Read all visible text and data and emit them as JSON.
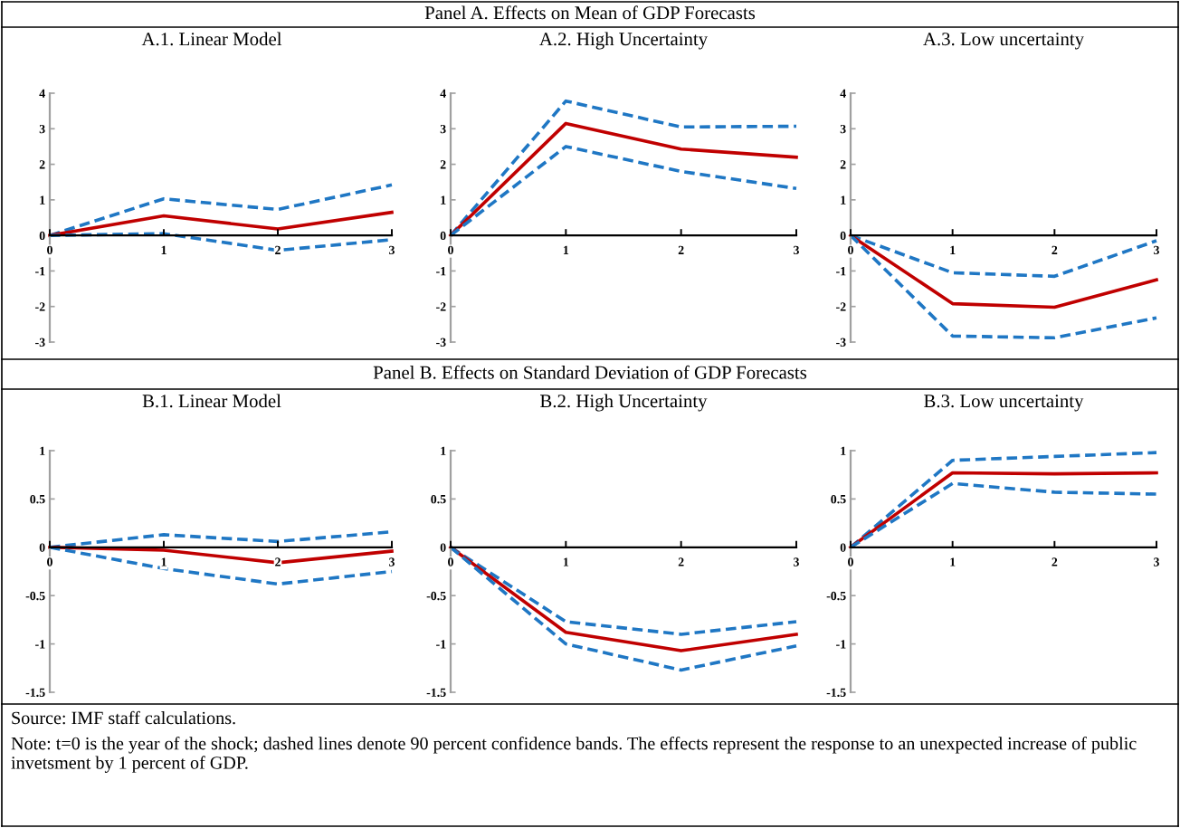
{
  "chart_data": [
    {
      "type": "other",
      "title": "Panel A. Effects on Mean of GDP Forecasts"
    },
    {
      "type": "line",
      "title": "A.1. Linear Model",
      "x": [
        0,
        1,
        2,
        3
      ],
      "xlim": [
        0,
        3
      ],
      "xticks": [
        0,
        1,
        2,
        3
      ],
      "ylim": [
        -3,
        4
      ],
      "yticks": [
        -3,
        -2,
        -1,
        0,
        1,
        2,
        3,
        4
      ],
      "grid": false,
      "legend": false,
      "series": [
        {
          "color": "#1f77c4",
          "line_style": "dashed",
          "values": [
            0,
            1.03,
            0.73,
            1.42
          ]
        },
        {
          "color": "#c00000",
          "line_style": "solid",
          "values": [
            0,
            0.55,
            0.18,
            0.65
          ]
        },
        {
          "color": "#1f77c4",
          "line_style": "dashed",
          "values": [
            0,
            0.05,
            -0.42,
            -0.12
          ]
        }
      ]
    },
    {
      "type": "line",
      "title": "A.2. High Uncertainty",
      "x": [
        0,
        1,
        2,
        3
      ],
      "xlim": [
        0,
        3
      ],
      "xticks": [
        0,
        1,
        2,
        3
      ],
      "ylim": [
        -3,
        4
      ],
      "yticks": [
        -3,
        -2,
        -1,
        0,
        1,
        2,
        3,
        4
      ],
      "grid": false,
      "legend": false,
      "series": [
        {
          "color": "#1f77c4",
          "line_style": "dashed",
          "values": [
            0,
            3.78,
            3.05,
            3.07
          ]
        },
        {
          "color": "#c00000",
          "line_style": "solid",
          "values": [
            0,
            3.15,
            2.43,
            2.2
          ]
        },
        {
          "color": "#1f77c4",
          "line_style": "dashed",
          "values": [
            0,
            2.5,
            1.8,
            1.32
          ]
        }
      ]
    },
    {
      "type": "line",
      "title": "A.3. Low uncertainty",
      "x": [
        0,
        1,
        2,
        3
      ],
      "xlim": [
        0,
        3
      ],
      "xticks": [
        0,
        1,
        2,
        3
      ],
      "ylim": [
        -3,
        4
      ],
      "yticks": [
        -3,
        -2,
        -1,
        0,
        1,
        2,
        3,
        4
      ],
      "grid": false,
      "legend": false,
      "series": [
        {
          "color": "#1f77c4",
          "line_style": "dashed",
          "values": [
            0,
            -1.05,
            -1.15,
            -0.15
          ]
        },
        {
          "color": "#c00000",
          "line_style": "solid",
          "values": [
            0,
            -1.92,
            -2.02,
            -1.25
          ]
        },
        {
          "color": "#1f77c4",
          "line_style": "dashed",
          "values": [
            0,
            -2.83,
            -2.88,
            -2.32
          ]
        }
      ]
    },
    {
      "type": "other",
      "title": "Panel B. Effects on Standard Deviation of GDP Forecasts"
    },
    {
      "type": "line",
      "title": "B.1. Linear Model",
      "x": [
        0,
        1,
        2,
        3
      ],
      "xlim": [
        0,
        3
      ],
      "xticks": [
        0,
        1,
        2,
        3
      ],
      "ylim": [
        -1.5,
        1
      ],
      "yticks": [
        -1.5,
        -1,
        -0.5,
        0,
        0.5,
        1
      ],
      "grid": false,
      "legend": false,
      "series": [
        {
          "color": "#1f77c4",
          "line_style": "dashed",
          "values": [
            0,
            0.13,
            0.06,
            0.16
          ]
        },
        {
          "color": "#c00000",
          "line_style": "solid",
          "values": [
            0,
            -0.03,
            -0.16,
            -0.04
          ]
        },
        {
          "color": "#1f77c4",
          "line_style": "dashed",
          "values": [
            0,
            -0.22,
            -0.38,
            -0.25
          ]
        }
      ]
    },
    {
      "type": "line",
      "title": "B.2. High Uncertainty",
      "x": [
        0,
        1,
        2,
        3
      ],
      "xlim": [
        0,
        3
      ],
      "xticks": [
        0,
        1,
        2,
        3
      ],
      "ylim": [
        -1.5,
        1
      ],
      "yticks": [
        -1.5,
        -1,
        -0.5,
        0,
        0.5,
        1
      ],
      "grid": false,
      "legend": false,
      "series": [
        {
          "color": "#1f77c4",
          "line_style": "dashed",
          "values": [
            0,
            -0.77,
            -0.9,
            -0.77
          ]
        },
        {
          "color": "#c00000",
          "line_style": "solid",
          "values": [
            0,
            -0.88,
            -1.07,
            -0.9
          ]
        },
        {
          "color": "#1f77c4",
          "line_style": "dashed",
          "values": [
            0,
            -1.0,
            -1.27,
            -1.02
          ]
        }
      ]
    },
    {
      "type": "line",
      "title": "B.3. Low uncertainty",
      "x": [
        0,
        1,
        2,
        3
      ],
      "xlim": [
        0,
        3
      ],
      "xticks": [
        0,
        1,
        2,
        3
      ],
      "ylim": [
        -1.5,
        1
      ],
      "yticks": [
        -1.5,
        -1,
        -0.5,
        0,
        0.5,
        1
      ],
      "grid": false,
      "legend": false,
      "series": [
        {
          "color": "#1f77c4",
          "line_style": "dashed",
          "values": [
            0,
            0.9,
            0.94,
            0.98
          ]
        },
        {
          "color": "#c00000",
          "line_style": "solid",
          "values": [
            0,
            0.77,
            0.76,
            0.77
          ]
        },
        {
          "color": "#1f77c4",
          "line_style": "dashed",
          "values": [
            0,
            0.66,
            0.57,
            0.55
          ]
        }
      ]
    },
    {
      "type": "other",
      "annotations": [
        "Source: IMF staff calculations.",
        "Note: t=0 is the year of the shock; dashed lines denote 90 percent confidence bands. The effects represent the response to an unexpected increase of public invetsment by 1 percent of GDP."
      ]
    }
  ]
}
